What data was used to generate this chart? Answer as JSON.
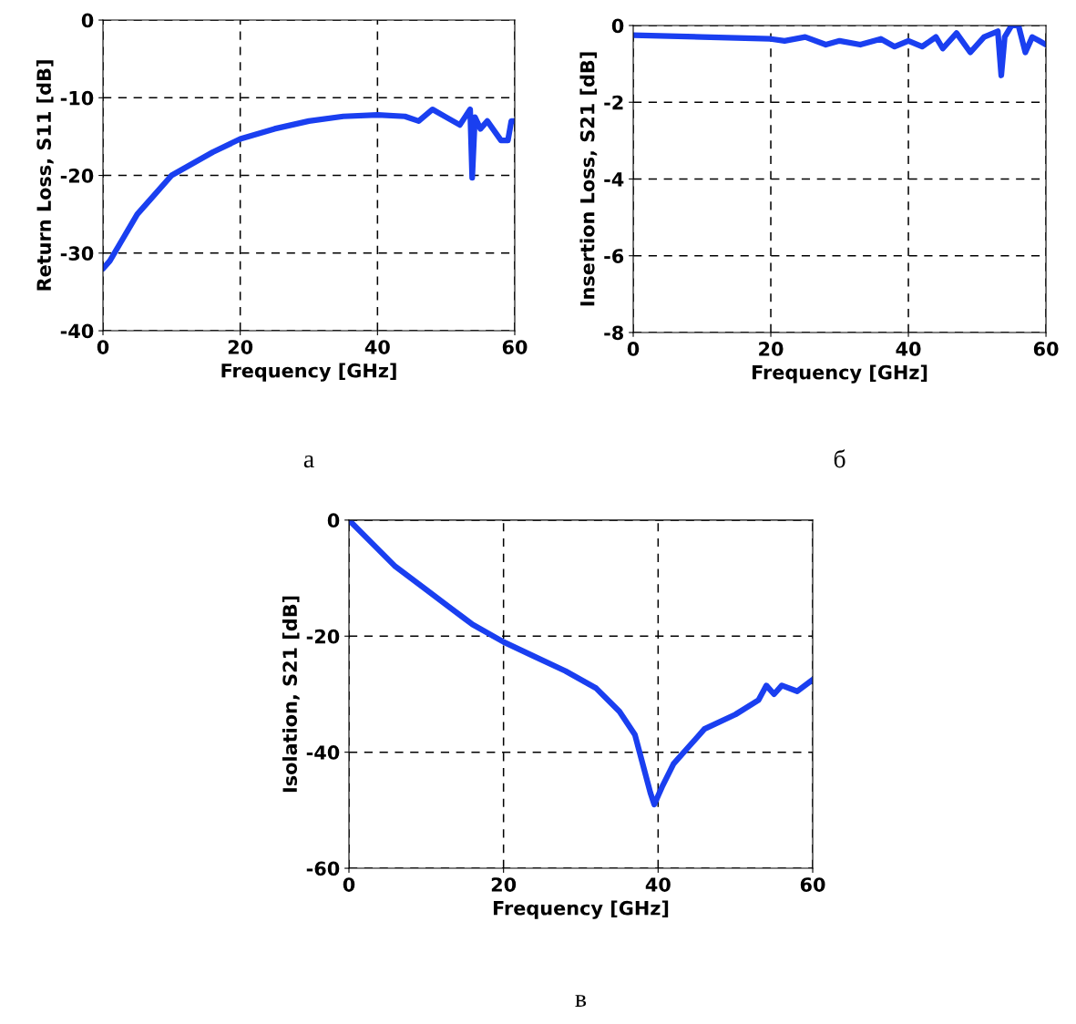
{
  "chart_data": [
    {
      "type": "line",
      "xlabel": "Frequency [GHz]",
      "ylabel": "Return Loss, S11 [dB]",
      "annotations": [
        "а"
      ],
      "xlim": [
        0,
        60
      ],
      "ylim": [
        -40,
        0
      ],
      "xticks": [
        0,
        20,
        40,
        60
      ],
      "yticks": [
        -40,
        -30,
        -20,
        -10,
        0
      ],
      "grid": true,
      "line_style": "solid",
      "series": [
        {
          "color": "#1a3ff0",
          "x": [
            0,
            1,
            3,
            5,
            7,
            10,
            13,
            16,
            20,
            25,
            30,
            35,
            40,
            44,
            46,
            48,
            50,
            52,
            53.5,
            53.8,
            54.2,
            55,
            56,
            58,
            59,
            59.5,
            60
          ],
          "values": [
            -32,
            -31,
            -28,
            -25,
            -23,
            -20,
            -18.5,
            -17,
            -15.3,
            -14,
            -13,
            -12.4,
            -12.2,
            -12.4,
            -13,
            -11.5,
            -12.5,
            -13.5,
            -11.5,
            -20.3,
            -12.5,
            -14,
            -13,
            -15.5,
            -15.5,
            -13,
            -13
          ]
        }
      ]
    },
    {
      "type": "line",
      "xlabel": "Frequency [GHz]",
      "ylabel": "Insertion Loss, S21 [dB]",
      "annotations": [
        "б"
      ],
      "xlim": [
        0,
        60
      ],
      "ylim": [
        -8,
        0
      ],
      "xticks": [
        0,
        20,
        40,
        60
      ],
      "yticks": [
        -8,
        -6,
        -4,
        -2,
        0
      ],
      "grid": true,
      "line_style": "solid",
      "series": [
        {
          "color": "#1a3ff0",
          "x": [
            0,
            10,
            20,
            22,
            25,
            28,
            30,
            33,
            36,
            38,
            40,
            42,
            44,
            45,
            47,
            49,
            51,
            53,
            53.5,
            54,
            55,
            56,
            57,
            58,
            59,
            60
          ],
          "values": [
            -0.25,
            -0.3,
            -0.35,
            -0.4,
            -0.3,
            -0.5,
            -0.4,
            -0.5,
            -0.35,
            -0.55,
            -0.4,
            -0.55,
            -0.3,
            -0.6,
            -0.2,
            -0.7,
            -0.3,
            -0.15,
            -1.3,
            -0.3,
            0,
            0,
            -0.7,
            -0.3,
            -0.4,
            -0.5
          ]
        }
      ]
    },
    {
      "type": "line",
      "xlabel": "Frequency [GHz]",
      "ylabel": "Isolation, S21 [dB]",
      "annotations": [
        "в"
      ],
      "xlim": [
        0,
        60
      ],
      "ylim": [
        -60,
        0
      ],
      "xticks": [
        0,
        20,
        40,
        60
      ],
      "yticks": [
        -60,
        -40,
        -20,
        0
      ],
      "grid": true,
      "line_style": "solid",
      "series": [
        {
          "color": "#1a3ff0",
          "x": [
            0,
            3,
            6,
            10,
            13,
            16,
            20,
            24,
            28,
            32,
            35,
            37,
            38,
            39,
            39.5,
            40.5,
            42,
            44,
            46,
            50,
            53,
            54,
            55,
            56,
            58,
            60
          ],
          "values": [
            0,
            -4,
            -8,
            -12,
            -15,
            -18,
            -21,
            -23.5,
            -26,
            -29,
            -33,
            -37,
            -42,
            -47,
            -49,
            -46,
            -42,
            -39,
            -36,
            -33.5,
            -31,
            -28.5,
            -30,
            -28.5,
            -29.5,
            -27.5
          ]
        }
      ]
    }
  ]
}
